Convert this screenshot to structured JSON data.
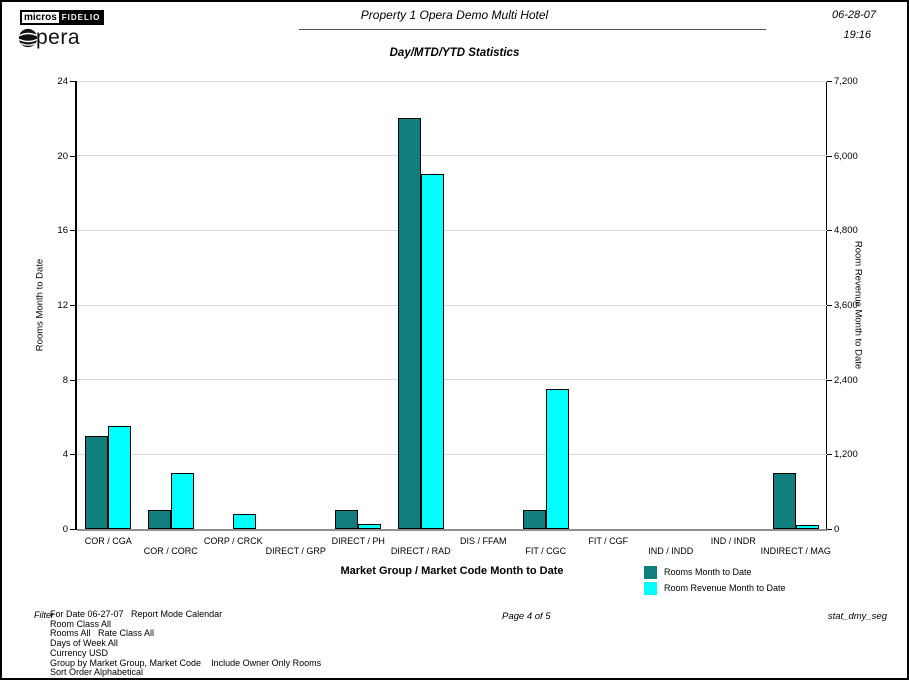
{
  "header": {
    "logo_micros": "micros",
    "logo_fidelio": "FIDELIO",
    "logo_opera": "Opera",
    "logo_opera_rest": "pera",
    "title": "Property 1 Opera Demo Multi Hotel",
    "date": "06-28-07",
    "time": "19:16"
  },
  "report": {
    "subtitle": "Day/MTD/YTD Statistics",
    "page_indicator": "Page 4 of 5",
    "report_code": "stat_dmy_seg"
  },
  "chart_data": {
    "type": "bar",
    "title": "Day/MTD/YTD Statistics",
    "xlabel": "Market Group / Market Code Month to Date",
    "grid": true,
    "legend_position": "bottom-right",
    "categories": [
      "COR / CGA",
      "COR / CORC",
      "CORP / CRCK",
      "DIRECT / GRP",
      "DIRECT / PH",
      "DIRECT / RAD",
      "DIS / FFAM",
      "FIT / CGC",
      "FIT / CGF",
      "IND / INDD",
      "IND / INDR",
      "INDIRECT / MAG"
    ],
    "series": [
      {
        "name": "Rooms Month to Date",
        "axis": "left",
        "color": "#117e7e",
        "values": [
          5,
          1,
          0,
          0,
          1,
          22,
          0,
          1,
          0,
          0,
          0,
          3
        ]
      },
      {
        "name": "Room Revenue Month to Date",
        "axis": "right",
        "color": "#00ffff",
        "values": [
          1650,
          900,
          240,
          0,
          80,
          5700,
          0,
          2250,
          0,
          0,
          0,
          60
        ]
      }
    ],
    "left_axis": {
      "label": "Rooms Month to Date",
      "min": 0,
      "max": 24,
      "ticks": [
        0,
        4,
        8,
        12,
        16,
        20,
        24
      ]
    },
    "right_axis": {
      "label": "Room Revenue Month to Date",
      "min": 0,
      "max": 7200,
      "tick_labels": [
        "0",
        "1,200",
        "2,400",
        "3,600",
        "4,800",
        "6,000",
        "7,200"
      ]
    }
  },
  "footer": {
    "filter_label": "Filter",
    "filter_lines": [
      "For Date 06-27-07   Report Mode Calendar",
      "Room Class All",
      "Rooms All   Rate Class All",
      "Days of Week All",
      "Currency USD",
      "Group by Market Group, Market Code    Include Owner Only Rooms",
      "Sort Order Alphabetical"
    ]
  },
  "colors": {
    "rooms_bar": "#117e7e",
    "revenue_bar": "#00ffff",
    "gridline": "#d9d9d9"
  }
}
